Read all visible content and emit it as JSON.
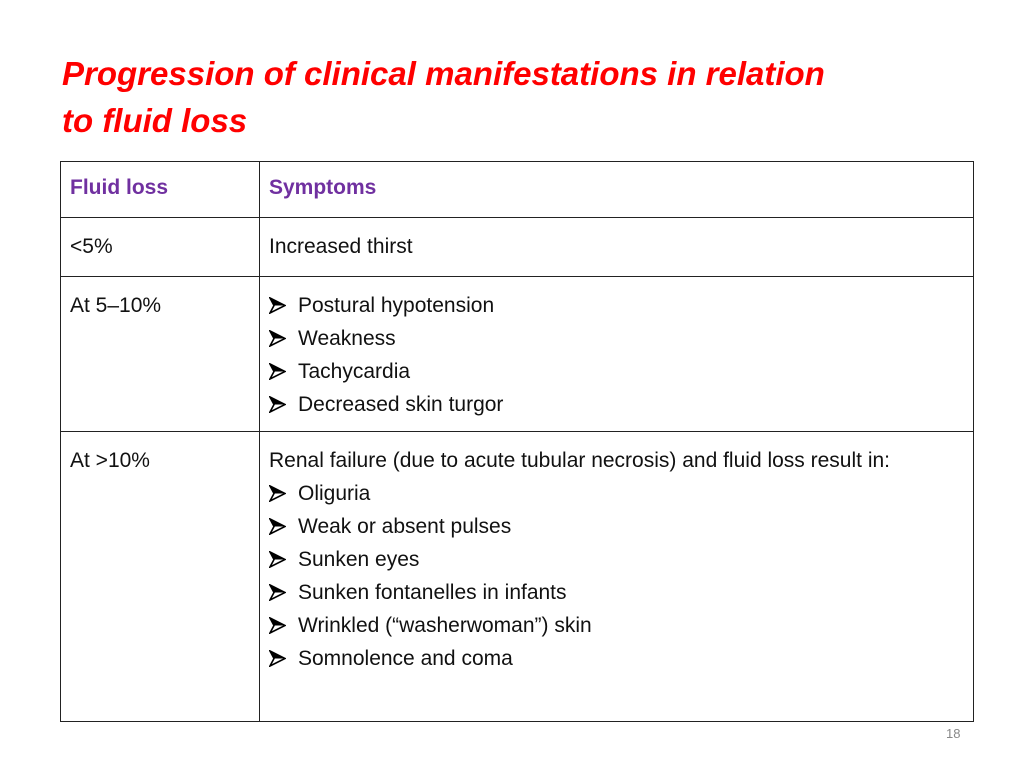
{
  "title": "Progression of clinical manifestations in relation to fluid loss",
  "table": {
    "header": [
      "Fluid loss",
      "Symptoms"
    ],
    "rows": [
      {
        "fluid_loss": "<5%",
        "text": "Increased thirst"
      },
      {
        "fluid_loss": "At 5–10%",
        "bullets": [
          "Postural hypotension",
          "Weakness",
          "Tachycardia",
          "Decreased skin turgor"
        ]
      },
      {
        "fluid_loss": "At >10%",
        "text": "Renal failure (due to acute tubular necrosis) and fluid loss result in:",
        "bullets": [
          "Oliguria",
          "Weak or absent pulses",
          "Sunken eyes",
          "Sunken fontanelles in infants",
          "Wrinkled (“washerwoman”) skin",
          "Somnolence and coma"
        ]
      }
    ]
  },
  "page_number": "18"
}
